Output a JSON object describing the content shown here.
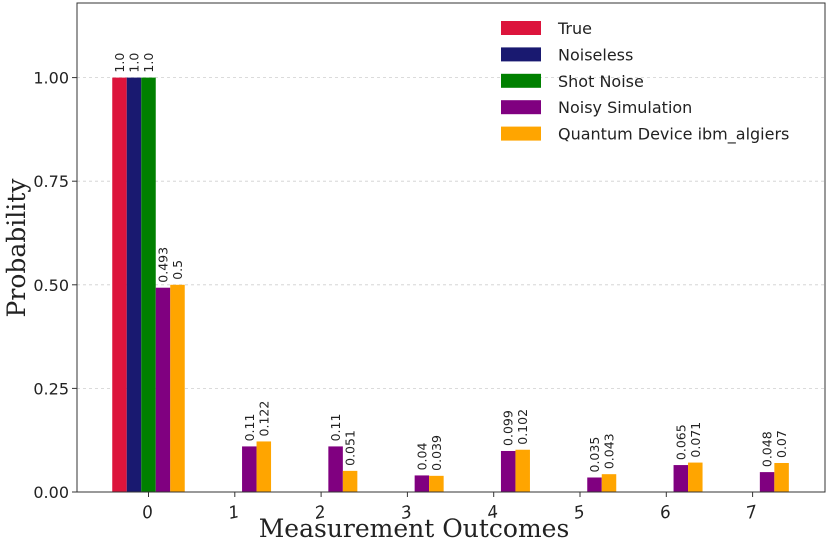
{
  "chart_data": {
    "type": "bar",
    "title": "",
    "xlabel": "Measurement Outcomes",
    "ylabel": "Probability",
    "ylim": [
      0,
      1.18
    ],
    "yticks": [
      "0.00",
      "0.25",
      "0.50",
      "0.75",
      "1.00"
    ],
    "ytick_values": [
      0,
      0.25,
      0.5,
      0.75,
      1.0
    ],
    "grid": "horizontal dashed",
    "legend_position": "top-right",
    "categories": [
      "0",
      "1",
      "2",
      "3",
      "4",
      "5",
      "6",
      "7"
    ],
    "series": [
      {
        "name": "True",
        "color": "#dc143c",
        "values": [
          1.0,
          null,
          null,
          null,
          null,
          null,
          null,
          null
        ],
        "labels": [
          "1.0",
          "",
          "",
          "",
          "",
          "",
          "",
          ""
        ]
      },
      {
        "name": "Noiseless",
        "color": "#191970",
        "values": [
          1.0,
          null,
          null,
          null,
          null,
          null,
          null,
          null
        ],
        "labels": [
          "1.0",
          "",
          "",
          "",
          "",
          "",
          "",
          ""
        ]
      },
      {
        "name": "Shot Noise",
        "color": "#008000",
        "values": [
          1.0,
          null,
          null,
          null,
          null,
          null,
          null,
          null
        ],
        "labels": [
          "1.0",
          "",
          "",
          "",
          "",
          "",
          "",
          ""
        ]
      },
      {
        "name": "Noisy Simulation",
        "color": "#800080",
        "values": [
          0.493,
          0.11,
          0.11,
          0.04,
          0.099,
          0.035,
          0.065,
          0.048
        ],
        "labels": [
          "0.493",
          "0.11",
          "0.11",
          "0.04",
          "0.099",
          "0.035",
          "0.065",
          "0.048"
        ]
      },
      {
        "name": "Quantum Device ibm_algiers",
        "color": "#ffa500",
        "values": [
          0.5,
          0.122,
          0.051,
          0.039,
          0.102,
          0.043,
          0.071,
          0.07
        ],
        "labels": [
          "0.5",
          "0.122",
          "0.051",
          "0.039",
          "0.102",
          "0.043",
          "0.071",
          "0.07"
        ]
      }
    ]
  }
}
